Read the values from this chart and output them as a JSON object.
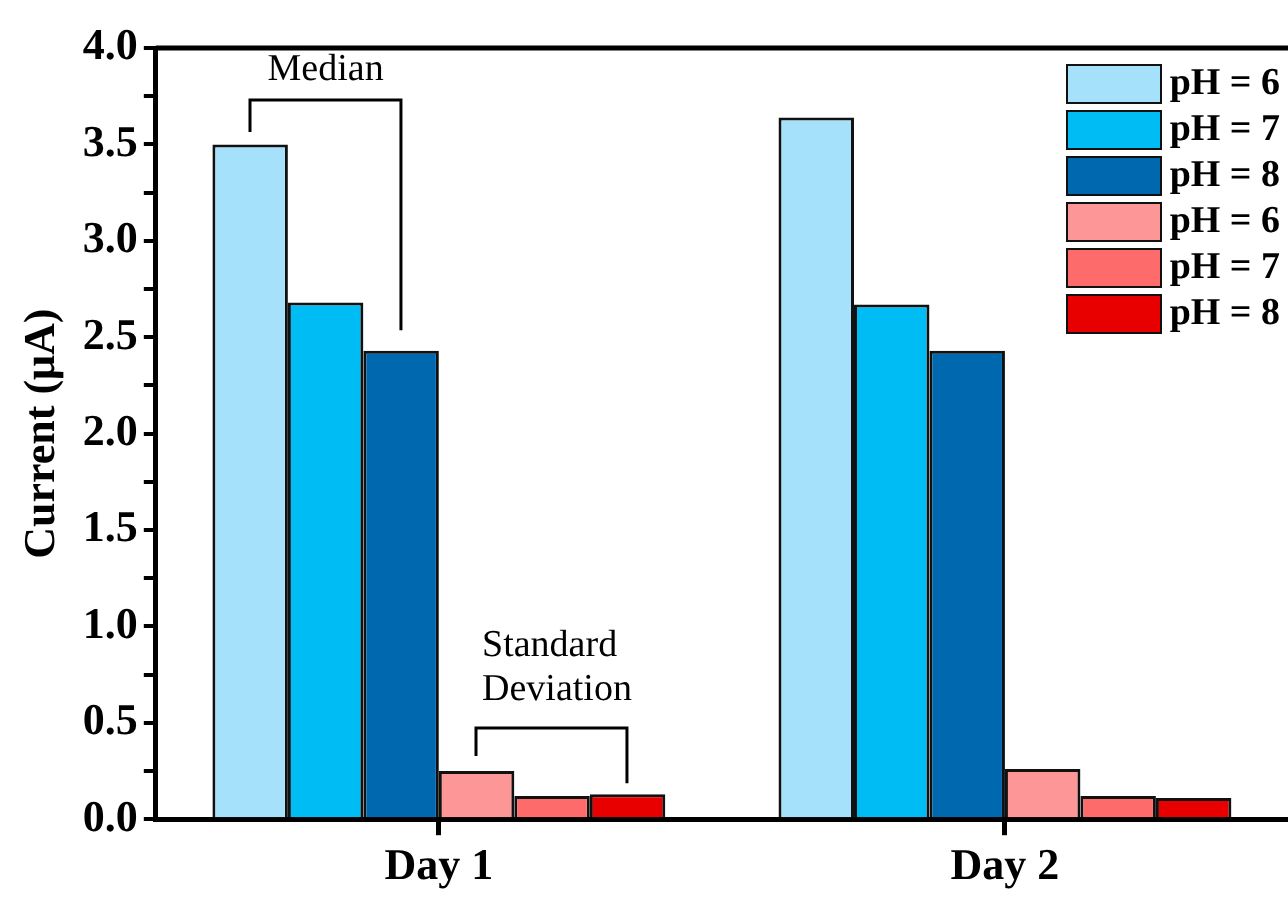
{
  "chart_data": {
    "type": "bar",
    "ylabel": "Current (μA)",
    "categories": [
      "Day 1",
      "Day 2"
    ],
    "series": [
      {
        "name": "pH = 6",
        "color": "#a6e1fb",
        "values": [
          3.5,
          3.64
        ]
      },
      {
        "name": "pH = 7",
        "color": "#00bcf5",
        "values": [
          2.68,
          2.67
        ]
      },
      {
        "name": "pH = 8",
        "color": "#0068ae",
        "values": [
          2.43,
          2.43
        ]
      },
      {
        "name": "pH = 6",
        "color": "#fd9797",
        "values": [
          0.25,
          0.26
        ]
      },
      {
        "name": "pH = 7",
        "color": "#fd6b6b",
        "values": [
          0.12,
          0.12
        ]
      },
      {
        "name": "pH = 8",
        "color": "#e80000",
        "values": [
          0.13,
          0.11
        ]
      }
    ],
    "ylim": [
      0,
      4
    ],
    "yticks": [
      {
        "value": 0,
        "label": "0.0"
      },
      {
        "value": 0.25,
        "label": null
      },
      0.5,
      {
        "value": 0.75,
        "label": null
      },
      {
        "value": 1,
        "label": "1.0"
      },
      {
        "value": 1.25,
        "label": null
      },
      1.5,
      {
        "value": 1.75,
        "label": null
      },
      {
        "value": 2,
        "label": "2.0"
      },
      {
        "value": 2.25,
        "label": null
      },
      2.5,
      {
        "value": 2.75,
        "label": null
      },
      {
        "value": 3,
        "label": "3.0"
      },
      {
        "value": 3.25,
        "label": null
      },
      3.5,
      {
        "value": 3.75,
        "label": null
      },
      {
        "value": 4,
        "label": "4.0"
      }
    ],
    "annotations": [
      "Median",
      "Standard Deviation"
    ],
    "legend": "top right"
  }
}
